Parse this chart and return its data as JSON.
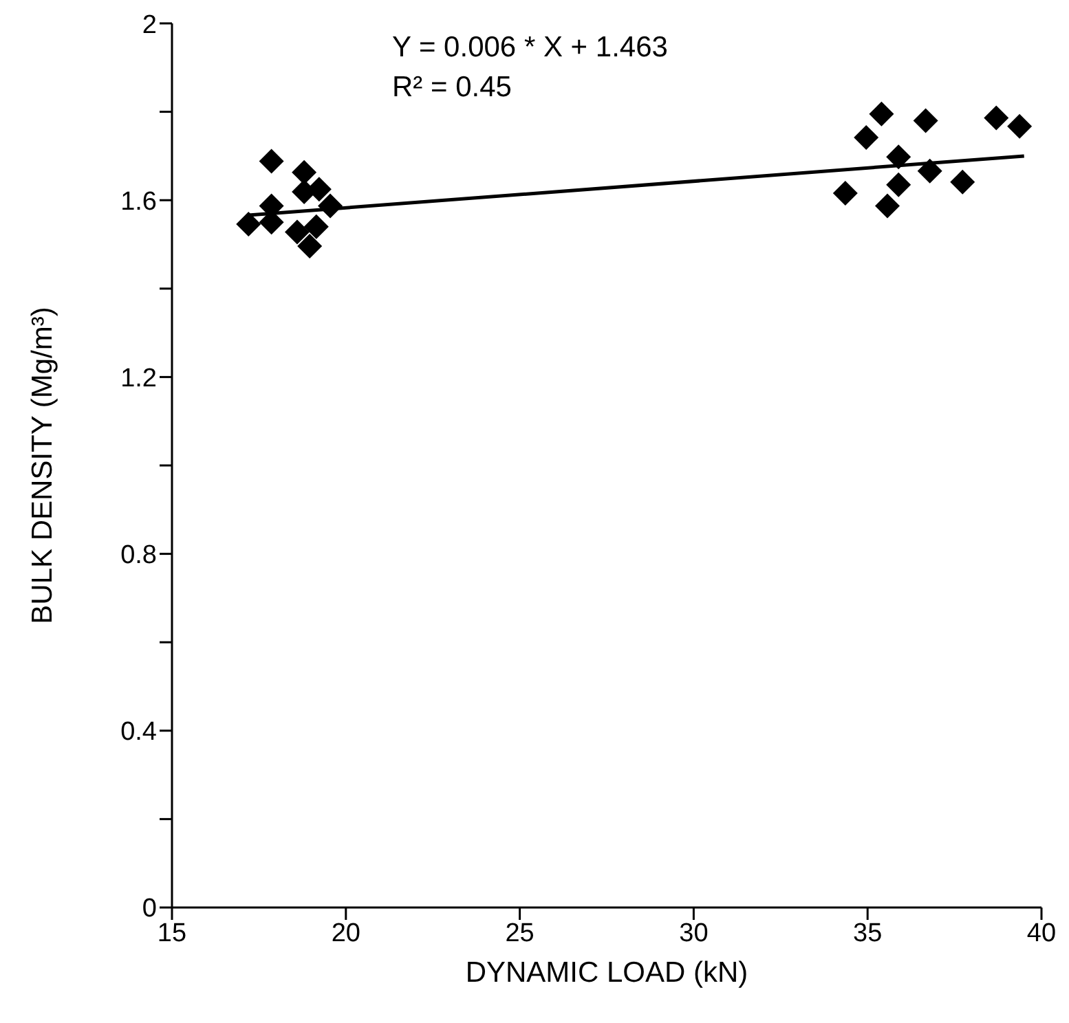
{
  "chart_data": {
    "type": "scatter",
    "xlabel": "DYNAMIC LOAD (kN)",
    "ylabel": "BULK DENSITY (Mg/m³)",
    "annotations": [
      "Y = 0.006 * X + 1.463",
      "R² = 0.45"
    ],
    "xlim": [
      15,
      40
    ],
    "xticks": [
      15,
      20,
      25,
      30,
      35,
      40
    ],
    "ylim": [
      0,
      2
    ],
    "yticks": [
      0,
      {
        "value": 0.2,
        "label": null
      },
      0.4,
      {
        "value": 0.6,
        "label": null
      },
      0.8,
      {
        "value": 1.0,
        "label": null
      },
      1.2,
      {
        "value": 1.4,
        "label": null
      },
      1.6,
      {
        "value": 1.8,
        "label": null
      },
      2
    ],
    "grid": false,
    "legend": false,
    "series": [
      {
        "type": "scatter",
        "marker": "diamond",
        "color": "#000000",
        "x": [
          17.2,
          17.86,
          17.86,
          17.86,
          18.8,
          18.8,
          18.6,
          18.96,
          19.15,
          19.31,
          19.55,
          19.23,
          35.4,
          36.67,
          38.7,
          39.37,
          34.96,
          35.89,
          36.79,
          37.73,
          34.36,
          35.89,
          35.57
        ],
        "values": [
          1.546,
          1.688,
          1.587,
          1.55,
          1.663,
          1.619,
          1.528,
          1.496,
          1.54,
          null,
          1.587,
          1.625,
          1.795,
          1.78,
          1.786,
          1.767,
          1.742,
          1.698,
          1.666,
          1.641,
          1.616,
          1.635,
          1.587
        ]
      },
      {
        "type": "line",
        "marker": "none",
        "color": "#000000",
        "x": [
          17.2,
          39.5
        ],
        "values": [
          1.566,
          1.7
        ]
      }
    ]
  }
}
